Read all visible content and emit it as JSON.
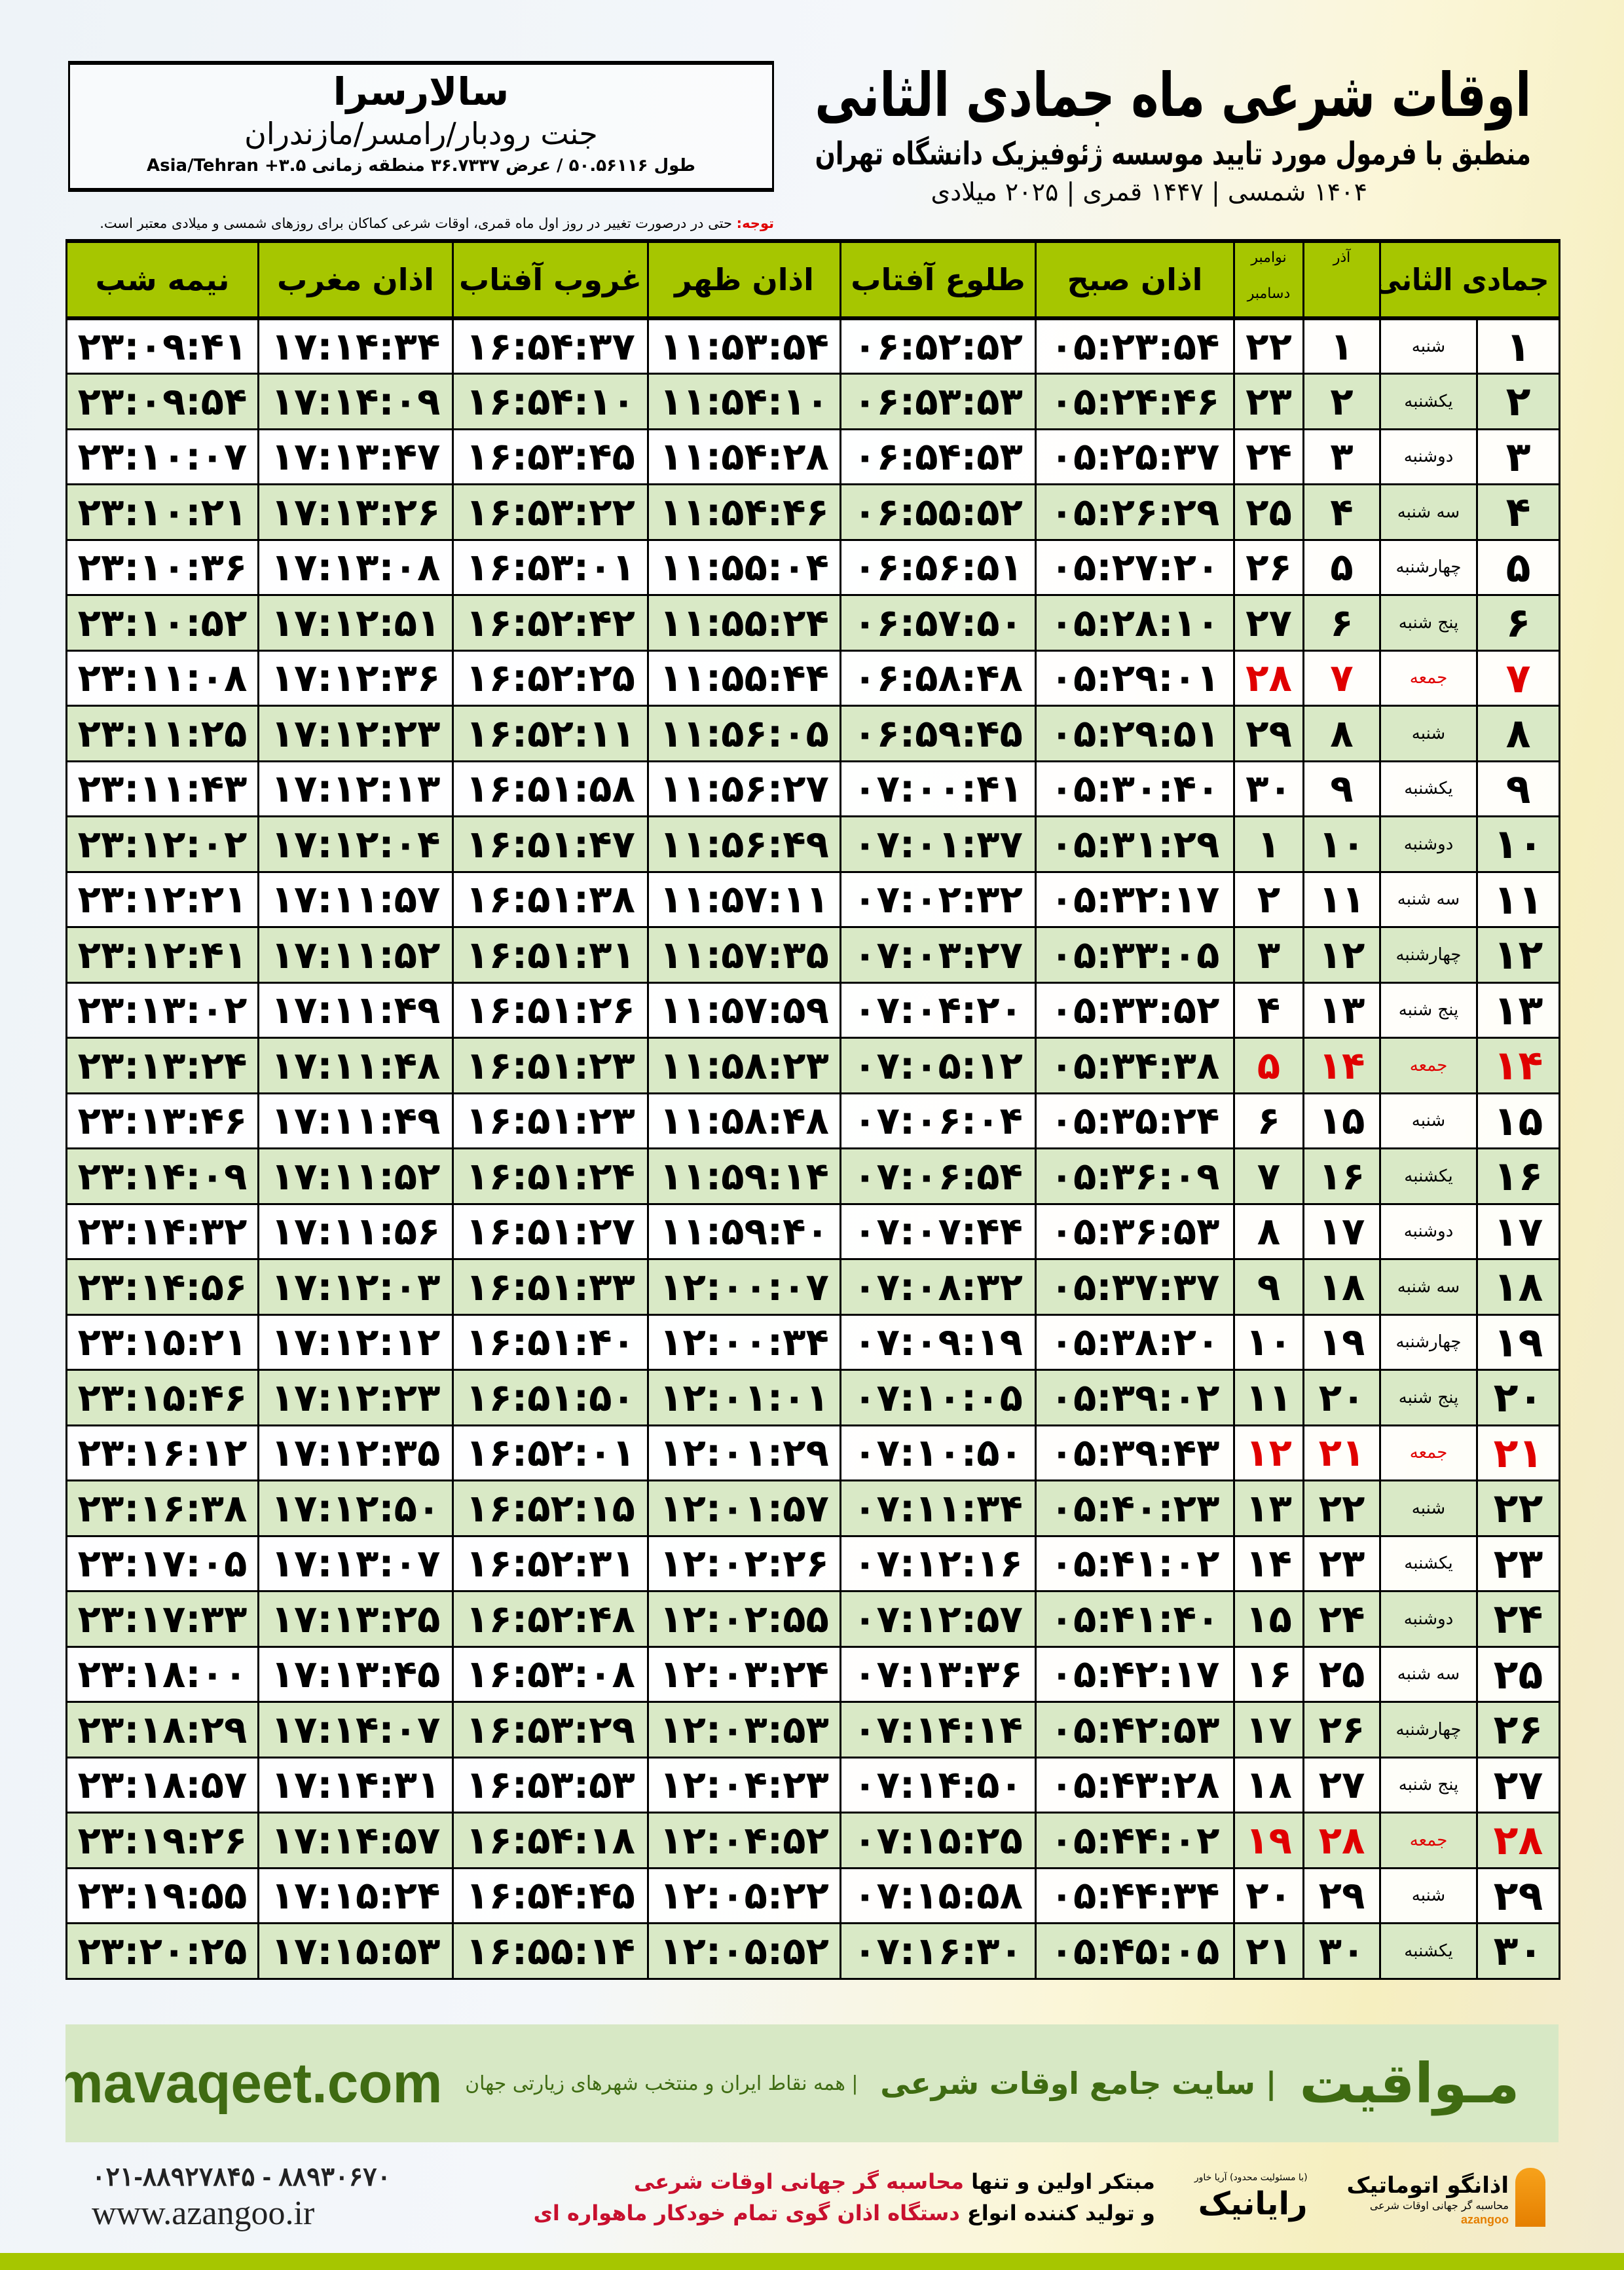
{
  "location": {
    "city": "سالارسرا",
    "region": "جنت رودبار/رامسر/مازندران",
    "coords": "طول ۵۰.۵۶۱۱۶ / عرض ۳۶.۷۳۳۷ منطقه زمانی ۳.۵+ Asia/Tehran"
  },
  "header": {
    "title": "اوقات شرعی ماه جمادی الثانی",
    "subtitle": "منطبق با فرمول مورد تایید موسسه ژئوفیزیک دانشگاه تهران",
    "dateline": "۱۴۰۴ شمسی | ۱۴۴۷ قمری | ۲۰۲۵ میلادی",
    "note_label": "توجه:",
    "note_text": " حتی در درصورت تغییر در روز اول ماه قمری، اوقات شرعی کماکان برای روزهای شمسی و میلادی معتبر است."
  },
  "colors": {
    "header_green": "#a6c600",
    "row_alt": "#d9e9c6",
    "friday_red": "#e00000"
  },
  "table": {
    "columns": [
      "جمادی الثانی",
      "",
      "آذر",
      "نوامبر",
      "دسامبر",
      "اذان صبح",
      "طلوع آفتاب",
      "اذان ظهر",
      "غروب آفتاب",
      "اذان مغرب",
      "نیمه شب"
    ],
    "rows": [
      [
        "۱",
        "شنبه",
        "۱",
        "۲۲",
        "۰۵:۲۳:۵۴",
        "۰۶:۵۲:۵۲",
        "۱۱:۵۳:۵۴",
        "۱۶:۵۴:۳۷",
        "۱۷:۱۴:۳۴",
        "۲۳:۰۹:۴۱"
      ],
      [
        "۲",
        "یکشنبه",
        "۲",
        "۲۳",
        "۰۵:۲۴:۴۶",
        "۰۶:۵۳:۵۳",
        "۱۱:۵۴:۱۰",
        "۱۶:۵۴:۱۰",
        "۱۷:۱۴:۰۹",
        "۲۳:۰۹:۵۴"
      ],
      [
        "۳",
        "دوشنبه",
        "۳",
        "۲۴",
        "۰۵:۲۵:۳۷",
        "۰۶:۵۴:۵۳",
        "۱۱:۵۴:۲۸",
        "۱۶:۵۳:۴۵",
        "۱۷:۱۳:۴۷",
        "۲۳:۱۰:۰۷"
      ],
      [
        "۴",
        "سه شنبه",
        "۴",
        "۲۵",
        "۰۵:۲۶:۲۹",
        "۰۶:۵۵:۵۲",
        "۱۱:۵۴:۴۶",
        "۱۶:۵۳:۲۲",
        "۱۷:۱۳:۲۶",
        "۲۳:۱۰:۲۱"
      ],
      [
        "۵",
        "چهارشنبه",
        "۵",
        "۲۶",
        "۰۵:۲۷:۲۰",
        "۰۶:۵۶:۵۱",
        "۱۱:۵۵:۰۴",
        "۱۶:۵۳:۰۱",
        "۱۷:۱۳:۰۸",
        "۲۳:۱۰:۳۶"
      ],
      [
        "۶",
        "پنج شنبه",
        "۶",
        "۲۷",
        "۰۵:۲۸:۱۰",
        "۰۶:۵۷:۵۰",
        "۱۱:۵۵:۲۴",
        "۱۶:۵۲:۴۲",
        "۱۷:۱۲:۵۱",
        "۲۳:۱۰:۵۲"
      ],
      [
        "۷",
        "جمعه",
        "۷",
        "۲۸",
        "۰۵:۲۹:۰۱",
        "۰۶:۵۸:۴۸",
        "۱۱:۵۵:۴۴",
        "۱۶:۵۲:۲۵",
        "۱۷:۱۲:۳۶",
        "۲۳:۱۱:۰۸"
      ],
      [
        "۸",
        "شنبه",
        "۸",
        "۲۹",
        "۰۵:۲۹:۵۱",
        "۰۶:۵۹:۴۵",
        "۱۱:۵۶:۰۵",
        "۱۶:۵۲:۱۱",
        "۱۷:۱۲:۲۳",
        "۲۳:۱۱:۲۵"
      ],
      [
        "۹",
        "یکشنبه",
        "۹",
        "۳۰",
        "۰۵:۳۰:۴۰",
        "۰۷:۰۰:۴۱",
        "۱۱:۵۶:۲۷",
        "۱۶:۵۱:۵۸",
        "۱۷:۱۲:۱۳",
        "۲۳:۱۱:۴۳"
      ],
      [
        "۱۰",
        "دوشنبه",
        "۱۰",
        "۱",
        "۰۵:۳۱:۲۹",
        "۰۷:۰۱:۳۷",
        "۱۱:۵۶:۴۹",
        "۱۶:۵۱:۴۷",
        "۱۷:۱۲:۰۴",
        "۲۳:۱۲:۰۲"
      ],
      [
        "۱۱",
        "سه شنبه",
        "۱۱",
        "۲",
        "۰۵:۳۲:۱۷",
        "۰۷:۰۲:۳۲",
        "۱۱:۵۷:۱۱",
        "۱۶:۵۱:۳۸",
        "۱۷:۱۱:۵۷",
        "۲۳:۱۲:۲۱"
      ],
      [
        "۱۲",
        "چهارشنبه",
        "۱۲",
        "۳",
        "۰۵:۳۳:۰۵",
        "۰۷:۰۳:۲۷",
        "۱۱:۵۷:۳۵",
        "۱۶:۵۱:۳۱",
        "۱۷:۱۱:۵۲",
        "۲۳:۱۲:۴۱"
      ],
      [
        "۱۳",
        "پنج شنبه",
        "۱۳",
        "۴",
        "۰۵:۳۳:۵۲",
        "۰۷:۰۴:۲۰",
        "۱۱:۵۷:۵۹",
        "۱۶:۵۱:۲۶",
        "۱۷:۱۱:۴۹",
        "۲۳:۱۳:۰۲"
      ],
      [
        "۱۴",
        "جمعه",
        "۱۴",
        "۵",
        "۰۵:۳۴:۳۸",
        "۰۷:۰۵:۱۲",
        "۱۱:۵۸:۲۳",
        "۱۶:۵۱:۲۳",
        "۱۷:۱۱:۴۸",
        "۲۳:۱۳:۲۴"
      ],
      [
        "۱۵",
        "شنبه",
        "۱۵",
        "۶",
        "۰۵:۳۵:۲۴",
        "۰۷:۰۶:۰۴",
        "۱۱:۵۸:۴۸",
        "۱۶:۵۱:۲۳",
        "۱۷:۱۱:۴۹",
        "۲۳:۱۳:۴۶"
      ],
      [
        "۱۶",
        "یکشنبه",
        "۱۶",
        "۷",
        "۰۵:۳۶:۰۹",
        "۰۷:۰۶:۵۴",
        "۱۱:۵۹:۱۴",
        "۱۶:۵۱:۲۴",
        "۱۷:۱۱:۵۲",
        "۲۳:۱۴:۰۹"
      ],
      [
        "۱۷",
        "دوشنبه",
        "۱۷",
        "۸",
        "۰۵:۳۶:۵۳",
        "۰۷:۰۷:۴۴",
        "۱۱:۵۹:۴۰",
        "۱۶:۵۱:۲۷",
        "۱۷:۱۱:۵۶",
        "۲۳:۱۴:۳۲"
      ],
      [
        "۱۸",
        "سه شنبه",
        "۱۸",
        "۹",
        "۰۵:۳۷:۳۷",
        "۰۷:۰۸:۳۲",
        "۱۲:۰۰:۰۷",
        "۱۶:۵۱:۳۳",
        "۱۷:۱۲:۰۳",
        "۲۳:۱۴:۵۶"
      ],
      [
        "۱۹",
        "چهارشنبه",
        "۱۹",
        "۱۰",
        "۰۵:۳۸:۲۰",
        "۰۷:۰۹:۱۹",
        "۱۲:۰۰:۳۴",
        "۱۶:۵۱:۴۰",
        "۱۷:۱۲:۱۲",
        "۲۳:۱۵:۲۱"
      ],
      [
        "۲۰",
        "پنج شنبه",
        "۲۰",
        "۱۱",
        "۰۵:۳۹:۰۲",
        "۰۷:۱۰:۰۵",
        "۱۲:۰۱:۰۱",
        "۱۶:۵۱:۵۰",
        "۱۷:۱۲:۲۳",
        "۲۳:۱۵:۴۶"
      ],
      [
        "۲۱",
        "جمعه",
        "۲۱",
        "۱۲",
        "۰۵:۳۹:۴۳",
        "۰۷:۱۰:۵۰",
        "۱۲:۰۱:۲۹",
        "۱۶:۵۲:۰۱",
        "۱۷:۱۲:۳۵",
        "۲۳:۱۶:۱۲"
      ],
      [
        "۲۲",
        "شنبه",
        "۲۲",
        "۱۳",
        "۰۵:۴۰:۲۳",
        "۰۷:۱۱:۳۴",
        "۱۲:۰۱:۵۷",
        "۱۶:۵۲:۱۵",
        "۱۷:۱۲:۵۰",
        "۲۳:۱۶:۳۸"
      ],
      [
        "۲۳",
        "یکشنبه",
        "۲۳",
        "۱۴",
        "۰۵:۴۱:۰۲",
        "۰۷:۱۲:۱۶",
        "۱۲:۰۲:۲۶",
        "۱۶:۵۲:۳۱",
        "۱۷:۱۳:۰۷",
        "۲۳:۱۷:۰۵"
      ],
      [
        "۲۴",
        "دوشنبه",
        "۲۴",
        "۱۵",
        "۰۵:۴۱:۴۰",
        "۰۷:۱۲:۵۷",
        "۱۲:۰۲:۵۵",
        "۱۶:۵۲:۴۸",
        "۱۷:۱۳:۲۵",
        "۲۳:۱۷:۳۳"
      ],
      [
        "۲۵",
        "سه شنبه",
        "۲۵",
        "۱۶",
        "۰۵:۴۲:۱۷",
        "۰۷:۱۳:۳۶",
        "۱۲:۰۳:۲۴",
        "۱۶:۵۳:۰۸",
        "۱۷:۱۳:۴۵",
        "۲۳:۱۸:۰۰"
      ],
      [
        "۲۶",
        "چهارشنبه",
        "۲۶",
        "۱۷",
        "۰۵:۴۲:۵۳",
        "۰۷:۱۴:۱۴",
        "۱۲:۰۳:۵۳",
        "۱۶:۵۳:۲۹",
        "۱۷:۱۴:۰۷",
        "۲۳:۱۸:۲۹"
      ],
      [
        "۲۷",
        "پنج شنبه",
        "۲۷",
        "۱۸",
        "۰۵:۴۳:۲۸",
        "۰۷:۱۴:۵۰",
        "۱۲:۰۴:۲۳",
        "۱۶:۵۳:۵۳",
        "۱۷:۱۴:۳۱",
        "۲۳:۱۸:۵۷"
      ],
      [
        "۲۸",
        "جمعه",
        "۲۸",
        "۱۹",
        "۰۵:۴۴:۰۲",
        "۰۷:۱۵:۲۵",
        "۱۲:۰۴:۵۲",
        "۱۶:۵۴:۱۸",
        "۱۷:۱۴:۵۷",
        "۲۳:۱۹:۲۶"
      ],
      [
        "۲۹",
        "شنبه",
        "۲۹",
        "۲۰",
        "۰۵:۴۴:۳۴",
        "۰۷:۱۵:۵۸",
        "۱۲:۰۵:۲۲",
        "۱۶:۵۴:۴۵",
        "۱۷:۱۵:۲۴",
        "۲۳:۱۹:۵۵"
      ],
      [
        "۳۰",
        "یکشنبه",
        "۳۰",
        "۲۱",
        "۰۵:۴۵:۰۵",
        "۰۷:۱۶:۳۰",
        "۱۲:۰۵:۵۲",
        "۱۶:۵۵:۱۴",
        "۱۷:۱۵:۵۳",
        "۲۳:۲۰:۲۵"
      ]
    ]
  },
  "banner": {
    "logo": "مـواقیت",
    "tagline": "| سایت جامع اوقات شرعی",
    "sub": "| همه نقاط ایران و منتخب شهرهای زیارتی جهان",
    "site": "mavaqeet.com"
  },
  "footer": {
    "phone": "۰۲۱-۸۸۹۲۷۸۴۵ - ۸۸۹۳۰۶۷۰",
    "web": "www.azangoo.ir",
    "promo1a": "مبتکر اولین و تنها ",
    "promo1b": "محاسبه گر جهانی اوقات شرعی",
    "promo2a": "و تولید کننده انواع ",
    "promo2b": "دستگاه اذان گوی تمام خودکار ماهواره ای",
    "rayanik": "رایانیک",
    "rayanik_sub": "(با مسئولیت محدود) آریا خاور",
    "azangoo_name": "اذانگو اتوماتیک",
    "azangoo_sub": "محاسبه گر جهانی اوقات شرعی",
    "azangoo_en": "azangoo"
  }
}
